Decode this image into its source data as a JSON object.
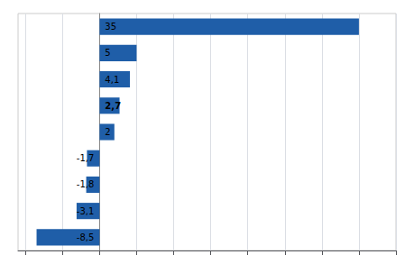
{
  "chart_data": {
    "type": "bar",
    "orientation": "horizontal",
    "categories": [
      null,
      null,
      null,
      null,
      null,
      null,
      null,
      null,
      null
    ],
    "values": [
      35,
      5,
      4.1,
      2.7,
      2,
      -1.7,
      -1.8,
      -3.1,
      -8.5
    ],
    "value_labels": [
      "35",
      "5",
      "4,1",
      "2,7",
      "2",
      "-1,7",
      "-1,8",
      "-3,1",
      "-8,5"
    ],
    "data_labels": true,
    "color": "#1F5EA8",
    "xlim": [
      -11,
      40
    ],
    "xticks": [
      -10,
      -5,
      0,
      5,
      10,
      15,
      20,
      25,
      30,
      35,
      40
    ],
    "grid": true,
    "tick_labels": false
  }
}
